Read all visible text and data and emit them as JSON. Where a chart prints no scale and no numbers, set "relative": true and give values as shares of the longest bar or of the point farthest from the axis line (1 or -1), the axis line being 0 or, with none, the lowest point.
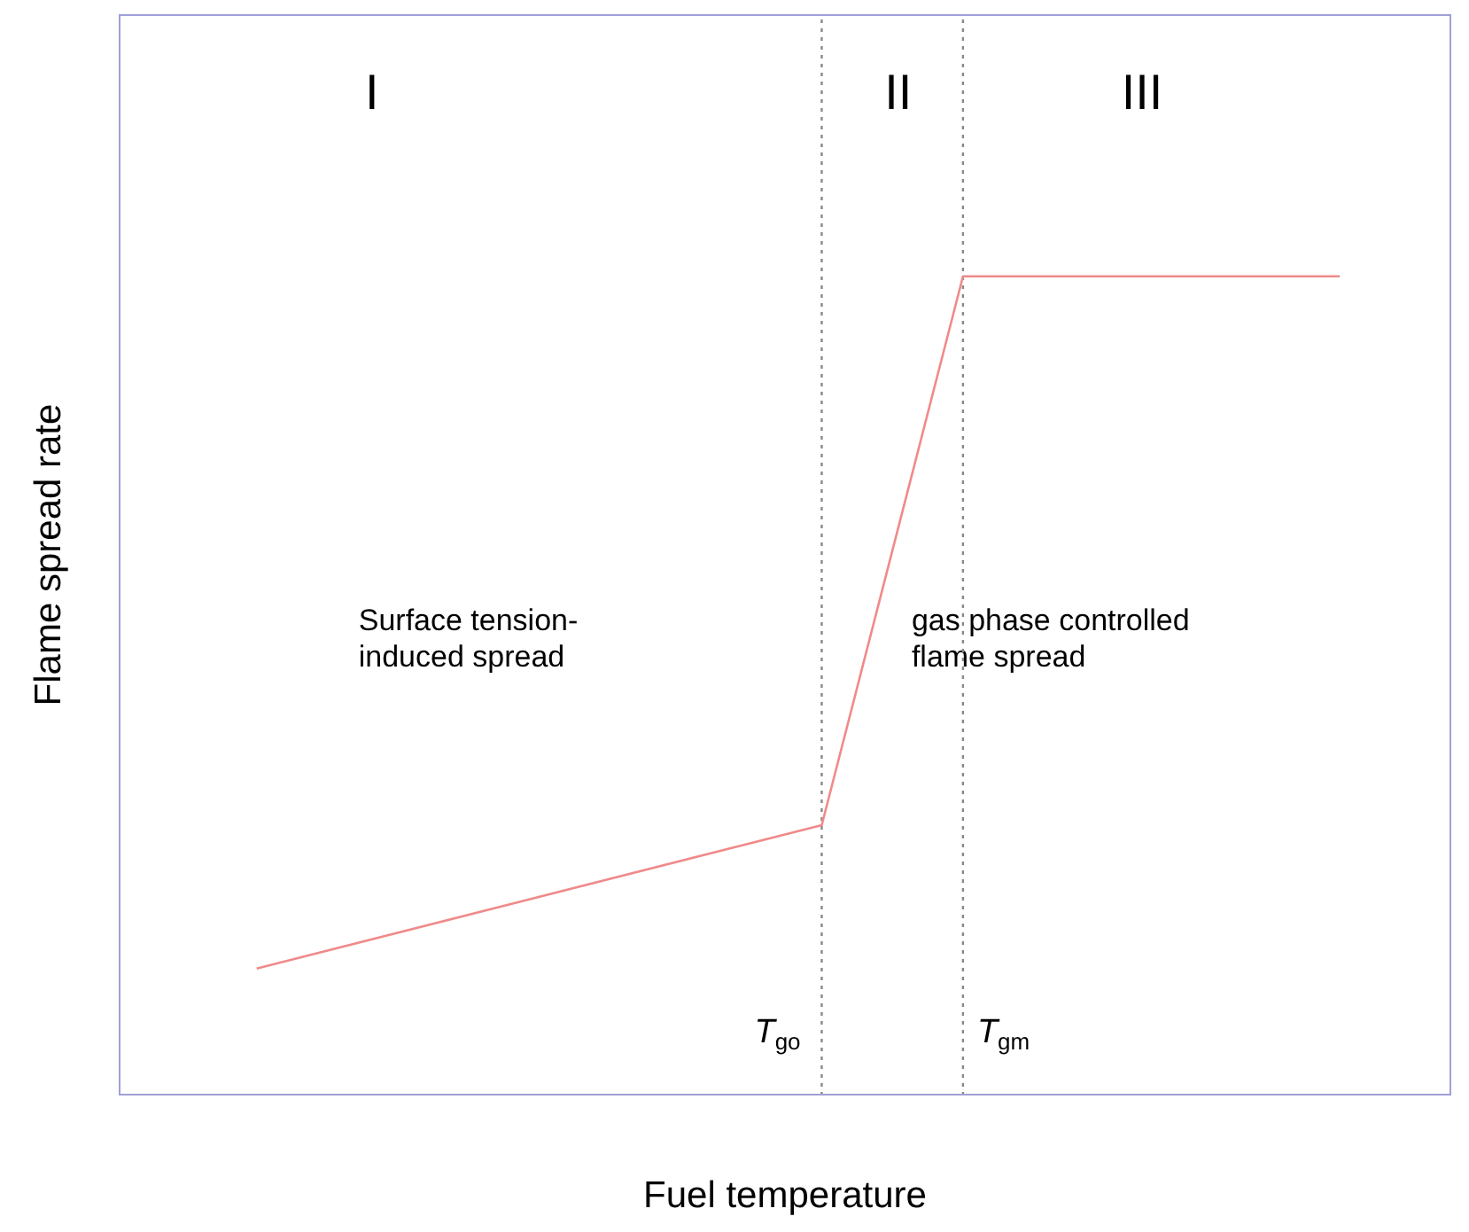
{
  "chart_data": {
    "type": "line",
    "relative": true,
    "xlabel": "Fuel temperature",
    "ylabel": "Flame spread rate",
    "categories": [
      null,
      null,
      null,
      null,
      null,
      null,
      null,
      null,
      null,
      null,
      null,
      null,
      null,
      null,
      null,
      null,
      null,
      null,
      null,
      null,
      null,
      null,
      null,
      null
    ],
    "tick_labels": false,
    "marker": "none",
    "line_style": "solid",
    "series": [
      {
        "color": "#f08a8a",
        "values": [
          0.155,
          null,
          null,
          null,
          null,
          null,
          null,
          null,
          null,
          null,
          null,
          null,
          0.33,
          null,
          null,
          1,
          null,
          null,
          null,
          null,
          null,
          null,
          null,
          1
        ]
      }
    ],
    "ref_lines": [
      {
        "axis": "x",
        "label": "T$_{go}$",
        "color": "#888888",
        "line_style": "dotted"
      },
      {
        "axis": "x",
        "label": "T$_{gm}$",
        "color": "#888888",
        "line_style": "dotted"
      }
    ],
    "annotations": [
      "I",
      "II",
      "III",
      "Surface tension-\ninduced spread",
      "gas phase controlled\nflame spread"
    ]
  }
}
